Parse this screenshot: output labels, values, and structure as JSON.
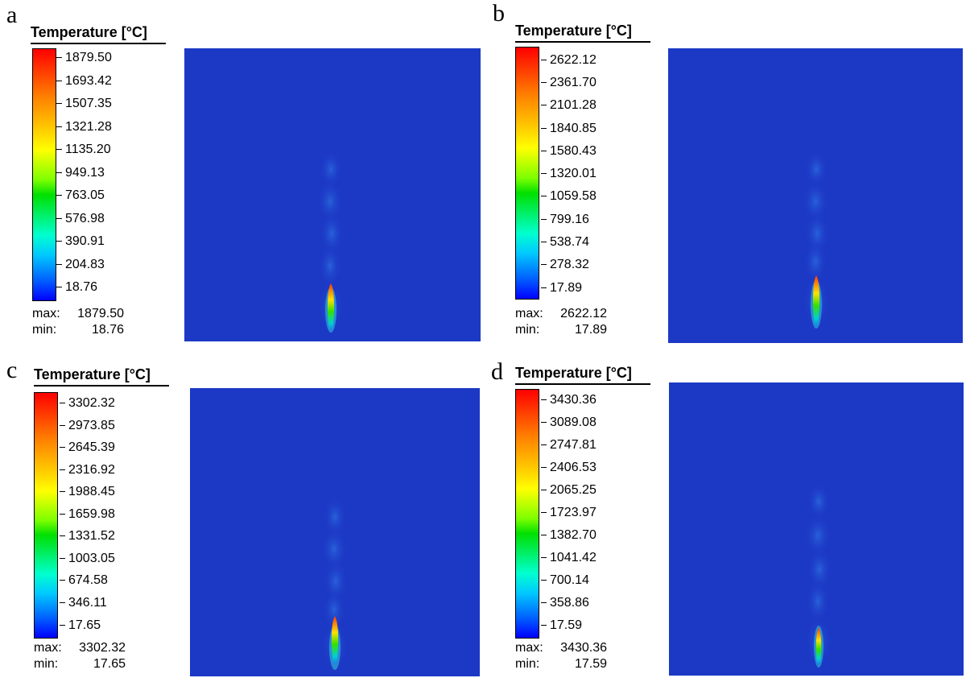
{
  "legend_title": "Temperature [°C]",
  "max_label": "max:",
  "min_label": "min:",
  "panels": [
    {
      "letter": "a",
      "ticks": [
        "1879.50",
        "1693.42",
        "1507.35",
        "1321.28",
        "1135.20",
        "949.13",
        "763.05",
        "576.98",
        "390.91",
        "204.83",
        "18.76"
      ],
      "max": "1879.50",
      "min": "18.76"
    },
    {
      "letter": "b",
      "ticks": [
        "2622.12",
        "2361.70",
        "2101.28",
        "1840.85",
        "1580.43",
        "1320.01",
        "1059.58",
        "799.16",
        "538.74",
        "278.32",
        "17.89"
      ],
      "max": "2622.12",
      "min": "17.89"
    },
    {
      "letter": "c",
      "ticks": [
        "3302.32",
        "2973.85",
        "2645.39",
        "2316.92",
        "1988.45",
        "1659.98",
        "1331.52",
        "1003.05",
        "674.58",
        "346.11",
        "17.65"
      ],
      "max": "3302.32",
      "min": "17.65"
    },
    {
      "letter": "d",
      "ticks": [
        "3430.36",
        "3089.08",
        "2747.81",
        "2406.53",
        "2065.25",
        "1723.97",
        "1382.70",
        "1041.42",
        "700.14",
        "358.86",
        "17.59"
      ],
      "max": "3430.36",
      "min": "17.59"
    }
  ],
  "colors": {
    "field_background": "#1c39c6",
    "hot": "#ff0000",
    "cold": "#0000ff"
  }
}
